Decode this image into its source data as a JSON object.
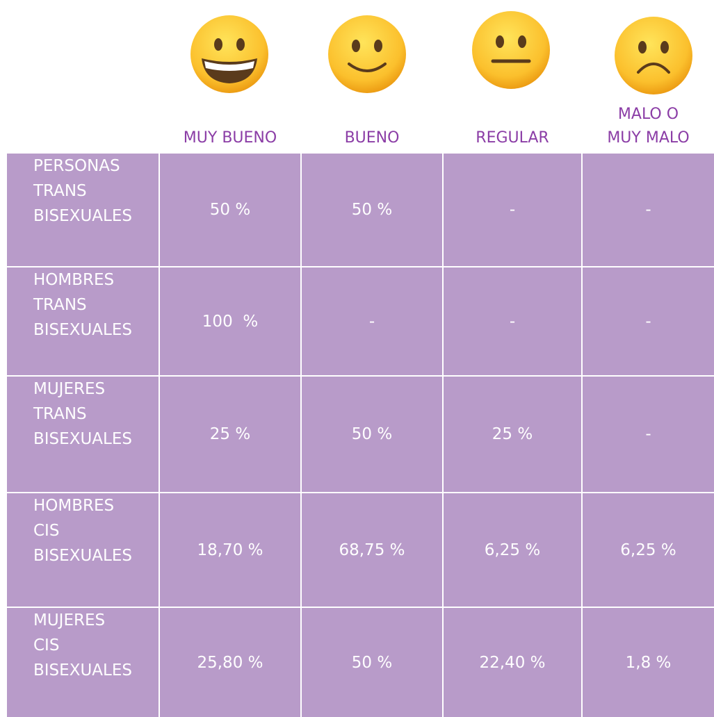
{
  "table": {
    "columns": [
      [
        "MUY BUENO"
      ],
      [
        "BUENO"
      ],
      [
        "REGULAR"
      ],
      [
        "MALO O",
        "MUY MALO"
      ]
    ],
    "rows": [
      {
        "label": [
          "PERSONAS",
          "TRANS",
          "BISEXUALES"
        ],
        "cells": [
          "50 %",
          "50 %",
          "-",
          "-"
        ]
      },
      {
        "label": [
          "HOMBRES",
          "TRANS",
          "BISEXUALES"
        ],
        "cells": [
          "100  %",
          "-",
          "-",
          "-"
        ]
      },
      {
        "label": [
          "MUJERES",
          "TRANS",
          "BISEXUALES"
        ],
        "cells": [
          "25 %",
          "50 %",
          "25 %",
          "-"
        ]
      },
      {
        "label": [
          "HOMBRES",
          "CIS",
          "BISEXUALES"
        ],
        "cells": [
          "18,70 %",
          "68,75 %",
          "6,25 %",
          "6,25 %"
        ]
      },
      {
        "label": [
          "MUJERES",
          "CIS",
          "BISEXUALES"
        ],
        "cells": [
          "25,80 %",
          "50 %",
          "22,40 %",
          "1,8 %"
        ]
      }
    ]
  }
}
